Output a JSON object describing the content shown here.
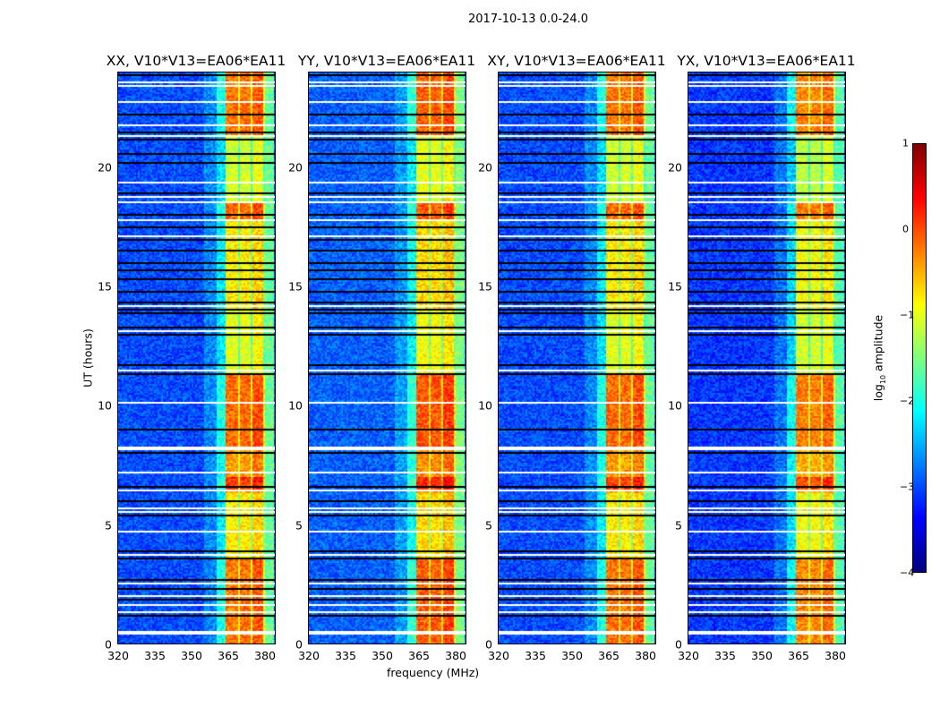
{
  "chart_data": {
    "type": "heatmap",
    "title": "2017-10-13 0.0-24.0",
    "xlabel": "frequency (MHz)",
    "ylabel": "UT (hours)",
    "xlim": [
      320,
      384
    ],
    "ylim": [
      0,
      24
    ],
    "xticks": [
      "320",
      "335",
      "350",
      "365",
      "380"
    ],
    "xtick_values": [
      320,
      335,
      350,
      365,
      380
    ],
    "yticks": [
      "0",
      "5",
      "10",
      "15",
      "20"
    ],
    "ytick_values": [
      0,
      5,
      10,
      15,
      20
    ],
    "colormap": "jet",
    "colorbar": {
      "label_pre": "log",
      "label_sub": "10",
      "label_post": " amplitude",
      "range": [
        -4,
        1
      ],
      "ticks": [
        "1",
        "0",
        "−1",
        "−2",
        "−3",
        "−4"
      ],
      "tick_values": [
        1,
        0,
        -1,
        -2,
        -3,
        -4
      ]
    },
    "panels": [
      {
        "title": "XX, V10*V13=EA06*EA11",
        "offset": 0
      },
      {
        "title": "YY, V10*V13=EA06*EA11",
        "offset": 0.1
      },
      {
        "title": "XY, V10*V13=EA06*EA11",
        "offset": 0
      },
      {
        "title": "YX, V10*V13=EA06*EA11",
        "offset": -0.1
      }
    ],
    "frequency_profile": [
      {
        "from": 320,
        "to": 355,
        "value": -3.0
      },
      {
        "from": 355,
        "to": 360,
        "value": -2.7
      },
      {
        "from": 360,
        "to": 364,
        "value": -2.1
      },
      {
        "from": 364,
        "to": 369,
        "value": -0.5
      },
      {
        "from": 369,
        "to": 370,
        "value": -1.2
      },
      {
        "from": 370,
        "to": 374,
        "value": -0.5
      },
      {
        "from": 374,
        "to": 375,
        "value": -1.2
      },
      {
        "from": 375,
        "to": 379,
        "value": -0.35
      },
      {
        "from": 379,
        "to": 380,
        "value": -1.2
      },
      {
        "from": 380,
        "to": 384,
        "value": -1.6
      }
    ],
    "time_gain": [
      {
        "from": 0,
        "to": 3.5,
        "value": 0.3
      },
      {
        "from": 3.5,
        "to": 6.3,
        "value": -0.3
      },
      {
        "from": 6.5,
        "to": 7.0,
        "value": 0.6
      },
      {
        "from": 7.0,
        "to": 8.2,
        "value": 0.1
      },
      {
        "from": 8.2,
        "to": 11.3,
        "value": 0.35
      },
      {
        "from": 11.3,
        "to": 14.0,
        "value": -0.5
      },
      {
        "from": 14.0,
        "to": 17.8,
        "value": -0.3
      },
      {
        "from": 17.8,
        "to": 18.6,
        "value": 0.35
      },
      {
        "from": 18.6,
        "to": 21.3,
        "value": -0.6
      },
      {
        "from": 21.3,
        "to": 24.0,
        "value": 0.3
      }
    ],
    "flagged_hours": [
      0.45,
      1.35,
      1.6,
      2.0,
      2.55,
      3.7,
      4.7,
      5.55,
      5.7,
      6.45,
      7.15,
      8.2,
      10.1,
      11.5,
      13.1,
      14.2,
      17.1,
      17.8,
      18.55,
      18.75,
      19.35,
      21.35,
      21.8,
      22.75,
      23.45,
      23.6
    ],
    "gap_hours": [
      1.2,
      1.85,
      2.3,
      2.7,
      3.55,
      3.85,
      5.4,
      6.0,
      6.6,
      7.45,
      8.0,
      9.0,
      11.35,
      11.7,
      12.95,
      13.3,
      13.9,
      14.05,
      14.35,
      14.8,
      15.3,
      15.7,
      16.0,
      16.5,
      17.0,
      17.5,
      18.0,
      18.9,
      20.2,
      20.6,
      21.2,
      21.5,
      22.2,
      23.9
    ]
  }
}
